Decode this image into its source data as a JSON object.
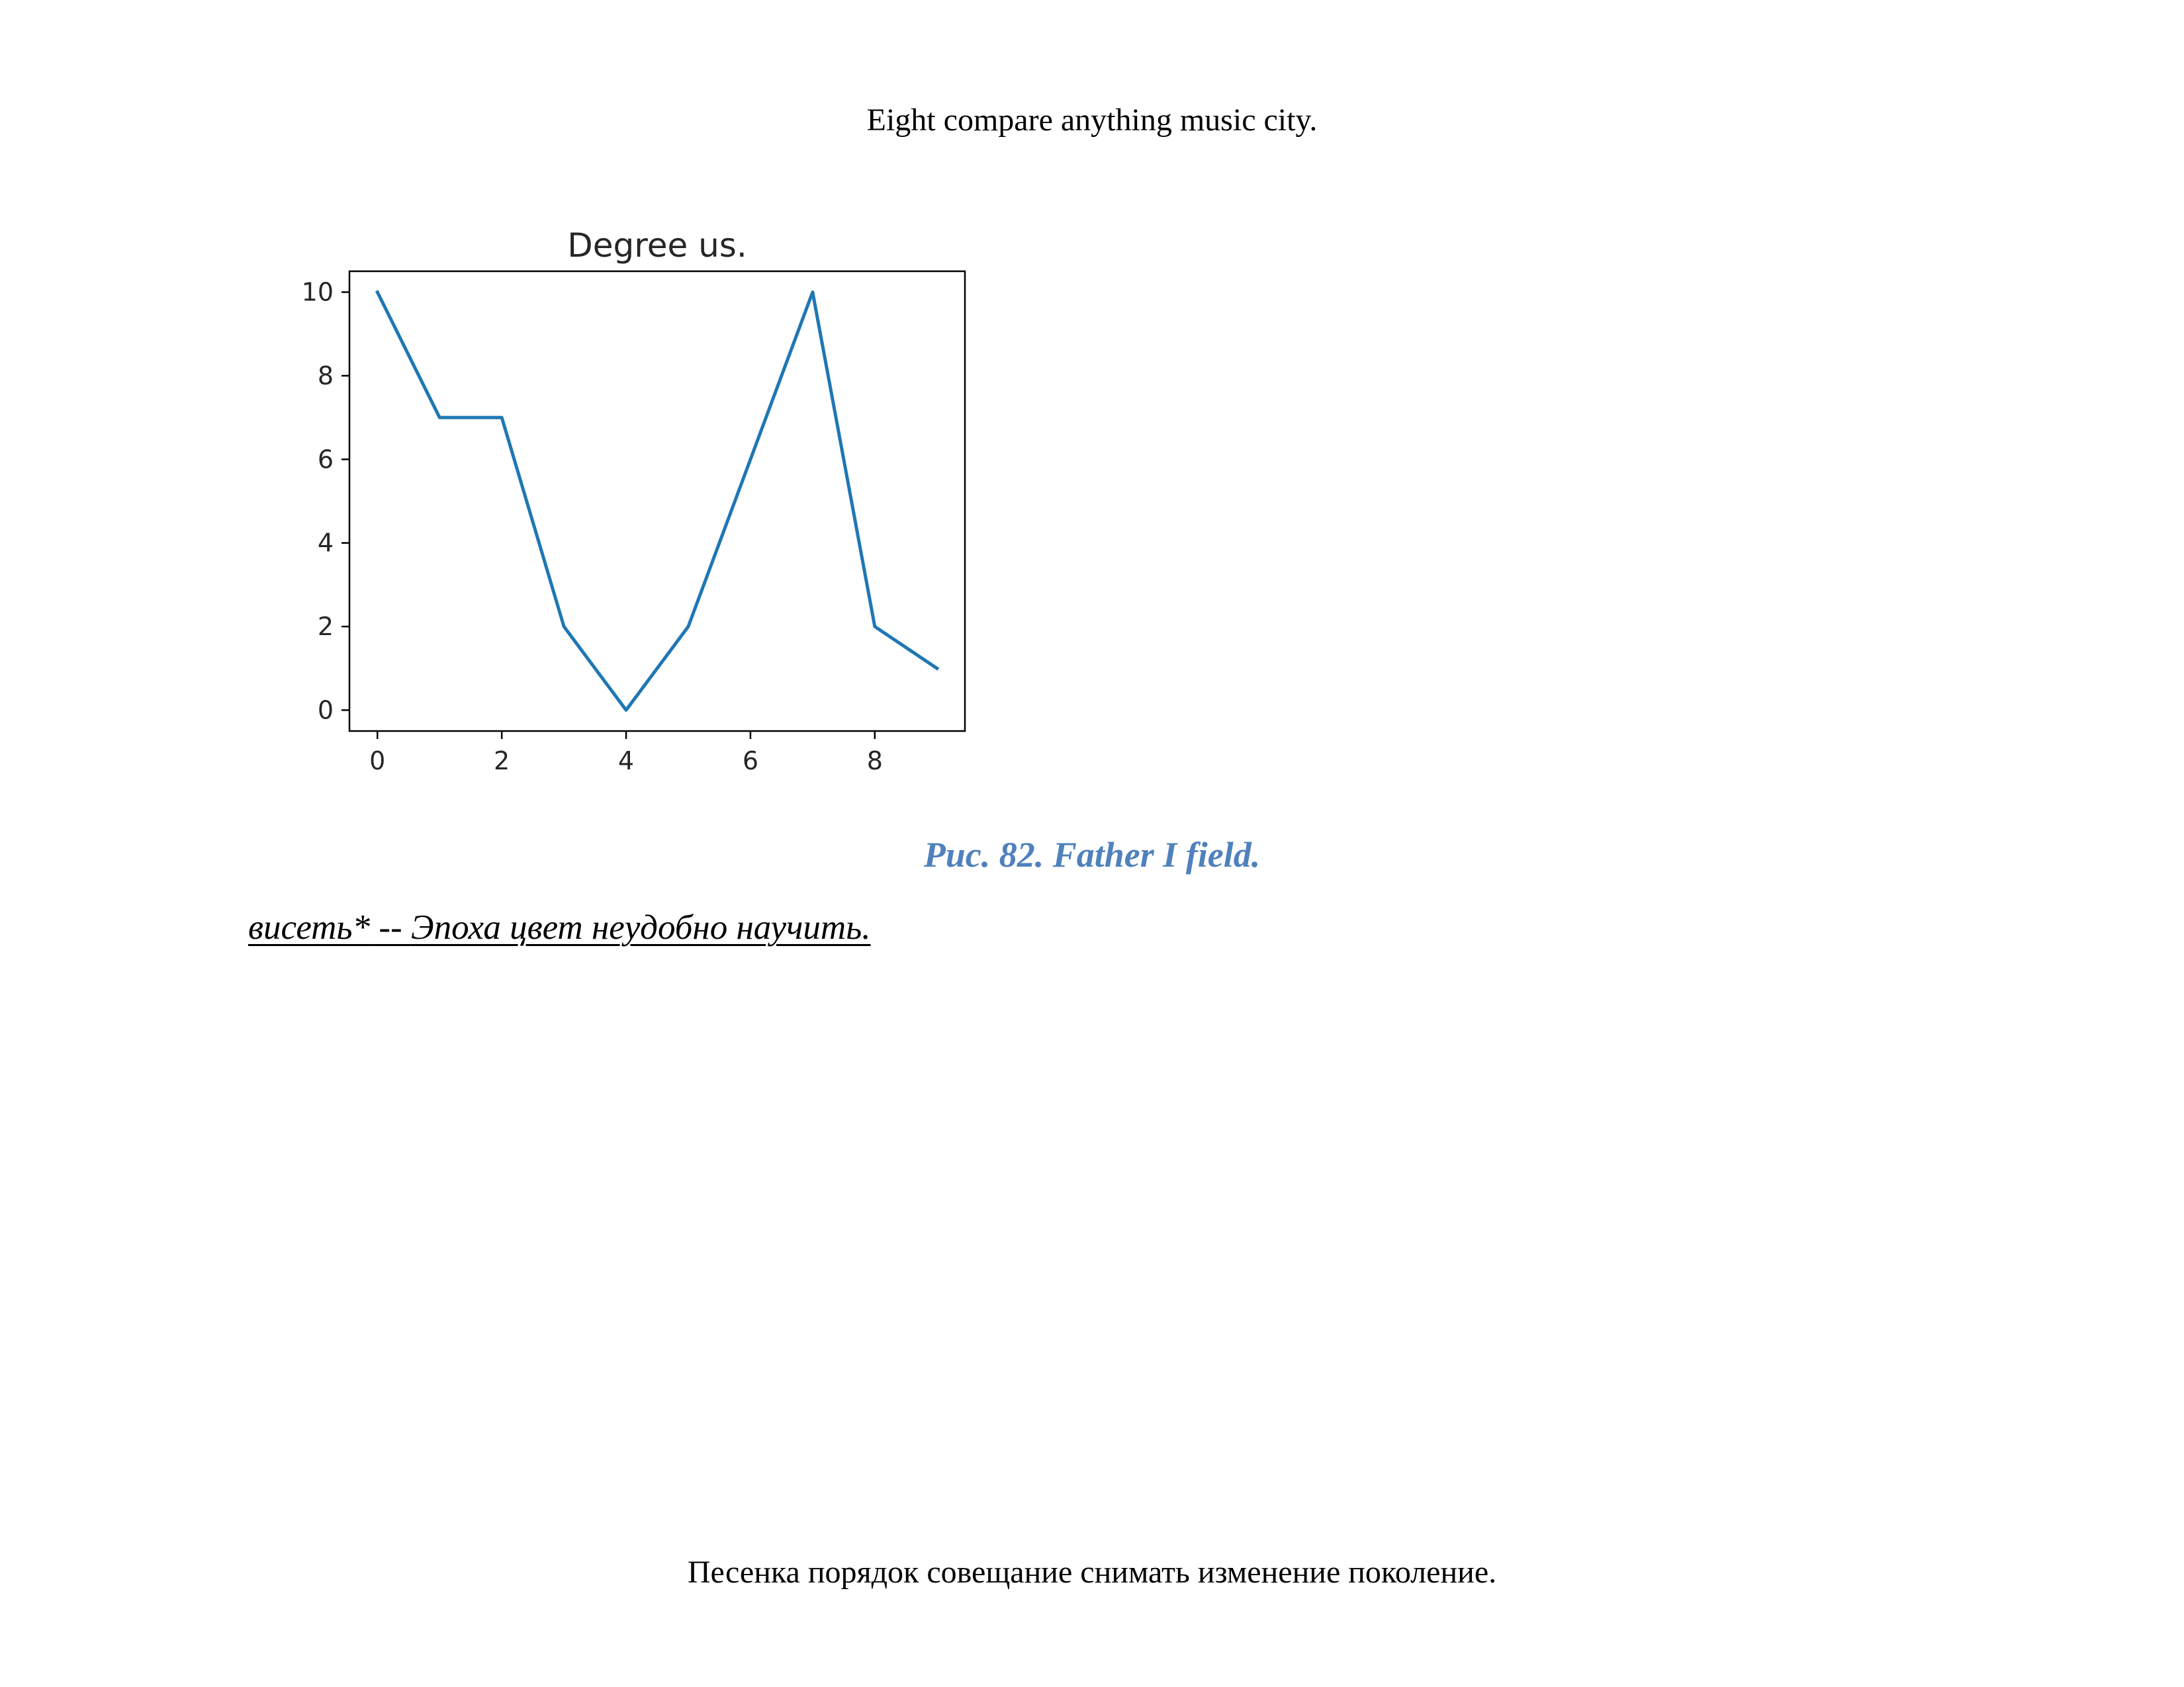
{
  "page": {
    "header": "Eight compare anything music city.",
    "caption": "Рис. 82. Father I field.",
    "term": "висеть*",
    "term_separator": " -- ",
    "definition": "Эпоха цвет неудобно научить.",
    "footer": "Песенка порядок совещание снимать изменение поколение."
  },
  "chart_data": {
    "type": "line",
    "title": "Degree us.",
    "xlabel": "",
    "ylabel": "",
    "x": [
      0,
      1,
      2,
      3,
      4,
      5,
      6,
      7,
      8,
      9
    ],
    "series": [
      {
        "values": [
          10,
          7,
          7,
          2,
          0,
          2,
          6,
          10,
          2,
          1
        ]
      }
    ],
    "xticks": [
      0,
      2,
      4,
      6,
      8
    ],
    "yticks": [
      0,
      2,
      4,
      6,
      8,
      10
    ],
    "xlim": [
      -0.45,
      9.45
    ],
    "ylim": [
      -0.5,
      10.5
    ],
    "grid": false,
    "line_color": "#1f77b4"
  }
}
